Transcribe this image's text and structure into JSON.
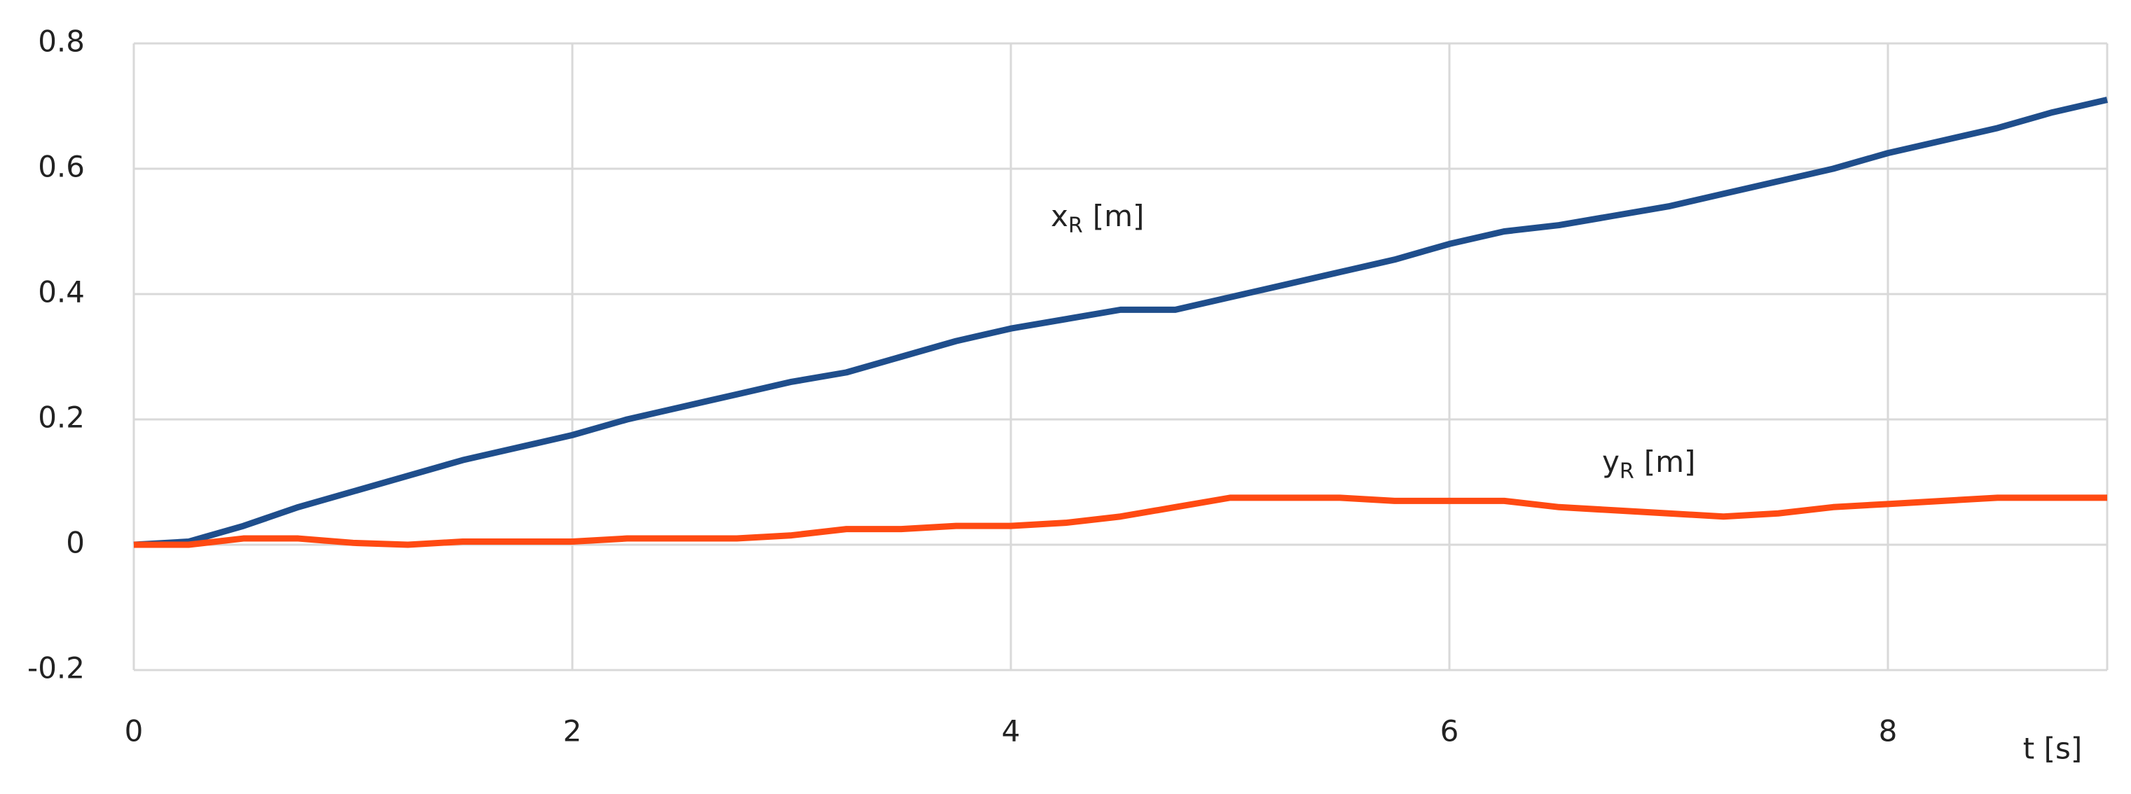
{
  "chart_data": {
    "type": "line",
    "x": [
      0,
      0.25,
      0.5,
      0.75,
      1,
      1.25,
      1.5,
      1.75,
      2,
      2.25,
      2.5,
      2.75,
      3,
      3.25,
      3.5,
      3.75,
      4,
      4.25,
      4.5,
      4.75,
      5,
      5.25,
      5.5,
      5.75,
      6,
      6.25,
      6.5,
      6.75,
      7,
      7.25,
      7.5,
      7.75,
      8,
      8.25,
      8.5,
      8.75,
      9
    ],
    "series": [
      {
        "name": "x",
        "subscript": "R",
        "unit": "[m]",
        "color": "#1f4e8c",
        "values": [
          0,
          0.005,
          0.03,
          0.06,
          0.085,
          0.11,
          0.135,
          0.155,
          0.175,
          0.2,
          0.22,
          0.24,
          0.26,
          0.275,
          0.3,
          0.325,
          0.345,
          0.36,
          0.375,
          0.375,
          0.395,
          0.415,
          0.435,
          0.455,
          0.48,
          0.5,
          0.51,
          0.525,
          0.54,
          0.56,
          0.58,
          0.6,
          0.625,
          0.645,
          0.665,
          0.69,
          0.71
        ]
      },
      {
        "name": "y",
        "subscript": "R",
        "unit": "[m]",
        "color": "#ff4a12",
        "values": [
          0,
          0,
          0.01,
          0.01,
          0.003,
          0,
          0.005,
          0.005,
          0.005,
          0.01,
          0.01,
          0.01,
          0.015,
          0.025,
          0.025,
          0.03,
          0.03,
          0.035,
          0.045,
          0.06,
          0.075,
          0.075,
          0.075,
          0.07,
          0.07,
          0.07,
          0.06,
          0.055,
          0.05,
          0.045,
          0.05,
          0.06,
          0.065,
          0.07,
          0.075,
          0.075,
          0.075
        ]
      }
    ],
    "x_label": "t [s]",
    "xlim": [
      0,
      9
    ],
    "xticks": [
      0,
      2,
      4,
      6,
      8
    ],
    "ylim": [
      -0.2,
      0.8
    ],
    "yticks": [
      -0.2,
      0,
      0.2,
      0.4,
      0.6,
      0.8
    ],
    "grid": true
  }
}
